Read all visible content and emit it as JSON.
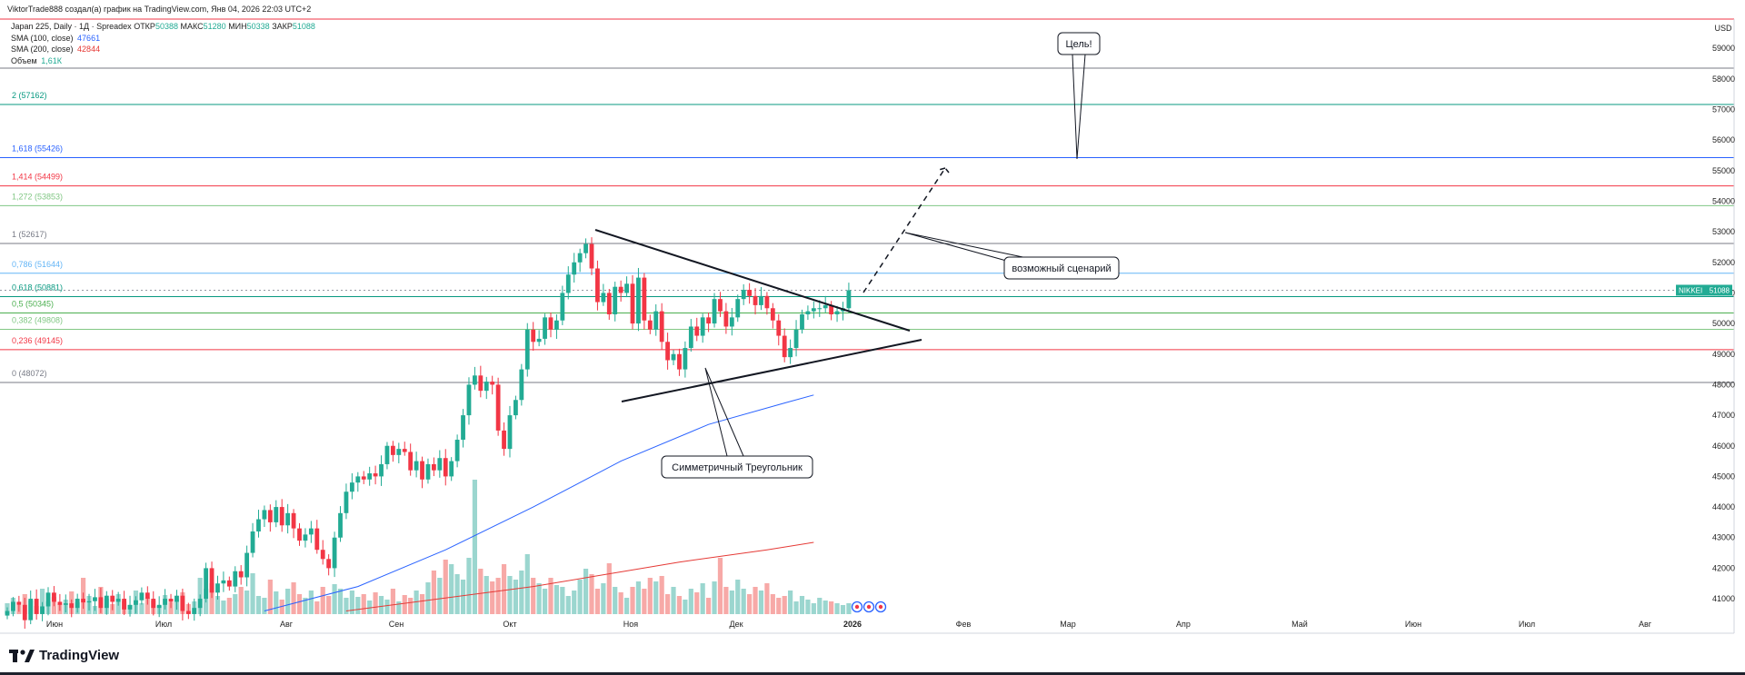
{
  "header": {
    "credit": "ViktorTrade888 создал(а) график на TradingView.com, Янв 04, 2026 22:03 UTC+2"
  },
  "legend": {
    "symbol_line": "Japan 225, Daily · 1Д · Spreadex",
    "ohlc": [
      {
        "label": "ОТКР",
        "value": "50388"
      },
      {
        "label": "МАКС",
        "value": "51280"
      },
      {
        "label": "МИН",
        "value": "50338"
      },
      {
        "label": "ЗАКР",
        "value": "51088"
      }
    ],
    "sma100": {
      "label": "SMA (100, close)",
      "value": "47661",
      "color": "#2962ff"
    },
    "sma200": {
      "label": "SMA (200, close)",
      "value": "42844",
      "color": "#e53935"
    },
    "volume": {
      "label": "Объем",
      "value": "1,61К"
    }
  },
  "colors": {
    "up": "#22ab94",
    "down": "#f23645",
    "vol_up": "#9bd6cf",
    "vol_down": "#f7a9a7",
    "sma100": "#2962ff",
    "sma200": "#e53935"
  },
  "footer": {
    "brand": "TradingView"
  },
  "chart_data": {
    "type": "candlestick",
    "title": "",
    "xlabel": "",
    "ylabel": "",
    "y_unit_label": "USD",
    "ylim": [
      40500,
      59600
    ],
    "y_ticks": [
      41000,
      42000,
      43000,
      44000,
      45000,
      46000,
      47000,
      48000,
      49000,
      50000,
      51000,
      52000,
      53000,
      54000,
      55000,
      56000,
      57000,
      58000,
      59000
    ],
    "x_labels": [
      "Июн",
      "Июл",
      "Авг",
      "Сен",
      "Окт",
      "Ноя",
      "Дек",
      "2026",
      "Фев",
      "Мар",
      "Апр",
      "Май",
      "Июн",
      "Июл",
      "Авг"
    ],
    "last_price": {
      "symbol": "NIKKEI",
      "value": "51088",
      "num": 51088
    },
    "fib_levels": [
      {
        "ratio": "0",
        "value": "48072",
        "num": 48072,
        "color": "#787b86"
      },
      {
        "ratio": "0,236",
        "value": "49145",
        "num": 49145,
        "color": "#f23645"
      },
      {
        "ratio": "0,382",
        "value": "49808",
        "num": 49808,
        "color": "#81c784"
      },
      {
        "ratio": "0,5",
        "value": "50345",
        "num": 50345,
        "color": "#4caf50"
      },
      {
        "ratio": "0,618",
        "value": "50881",
        "num": 50881,
        "color": "#089981"
      },
      {
        "ratio": "0,786",
        "value": "51644",
        "num": 51644,
        "color": "#64b5f6"
      },
      {
        "ratio": "1",
        "value": "52617",
        "num": 52617,
        "color": "#787b86"
      },
      {
        "ratio": "1,272",
        "value": "53853",
        "num": 53853,
        "color": "#81c784"
      },
      {
        "ratio": "1,414",
        "value": "54499",
        "num": 54499,
        "color": "#f23645"
      },
      {
        "ratio": "1,618",
        "value": "55426",
        "num": 55426,
        "color": "#2962ff"
      },
      {
        "ratio": "2",
        "value": "57162",
        "num": 57162,
        "color": "#089981"
      }
    ],
    "annotations": [
      {
        "id": "targets",
        "text": "Цель!"
      },
      {
        "id": "scenario",
        "text": "возможный сценарий"
      },
      {
        "id": "triangle",
        "text": "Симметричный Треугольник"
      }
    ],
    "series": [
      {
        "name": "Japan 225",
        "closes": [
          40600,
          40900,
          40800,
          40300,
          41000,
          40500,
          40750,
          41200,
          40900,
          40800,
          40850,
          40700,
          41000,
          40880,
          40920,
          41050,
          40700,
          41100,
          40900,
          41000,
          40650,
          40800,
          40950,
          41200,
          41000,
          40700,
          40800,
          41000,
          40900,
          41100,
          40600,
          40500,
          40700,
          41000,
          42000,
          41200,
          41500,
          41600,
          41400,
          41900,
          41700,
          42500,
          43200,
          43600,
          43900,
          43500,
          44000,
          43400,
          43800,
          43300,
          42900,
          43100,
          43300,
          42600,
          42300,
          42000,
          43000,
          43800,
          44500,
          44800,
          45000,
          44900,
          45100,
          45000,
          45400,
          46000,
          45700,
          45900,
          45800,
          45200,
          45500,
          44900,
          45400,
          45200,
          45600,
          45000,
          45500,
          46200,
          47000,
          48000,
          48300,
          47800,
          48100,
          48000,
          46500,
          45900,
          47000,
          47500,
          48500,
          49800,
          49400,
          49500,
          50200,
          49800,
          50100,
          51000,
          51600,
          52000,
          52300,
          52600,
          51800,
          50700,
          51000,
          50300,
          51200,
          51000,
          51300,
          50000,
          51500,
          50100,
          49800,
          50400,
          49400,
          48800,
          49000,
          48500,
          49200,
          49900,
          49600,
          50200,
          50000,
          50800,
          50400,
          49900,
          50200,
          50800,
          51100,
          50900,
          50600,
          50900,
          50500,
          50100,
          49600,
          48900,
          49200,
          49800,
          50300,
          50400,
          50500,
          50500,
          50600,
          50300,
          50400,
          50500,
          51088
        ]
      },
      {
        "name": "SMA (100, close)",
        "points": [
          [
            44,
            40600
          ],
          [
            60,
            41400
          ],
          [
            75,
            42600
          ],
          [
            90,
            44000
          ],
          [
            105,
            45500
          ],
          [
            120,
            46700
          ],
          [
            133,
            47400
          ],
          [
            138,
            47661
          ]
        ]
      },
      {
        "name": "SMA (200, close)",
        "points": [
          [
            58,
            40600
          ],
          [
            90,
            41400
          ],
          [
            115,
            42200
          ],
          [
            130,
            42600
          ],
          [
            138,
            42844
          ]
        ]
      }
    ]
  }
}
